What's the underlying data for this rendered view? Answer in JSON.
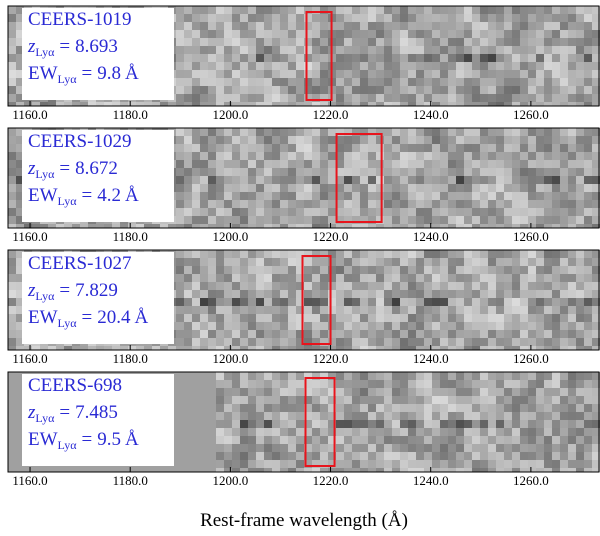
{
  "chart_data": [
    {
      "type": "spectrum2d",
      "name": "CEERS-1019",
      "z_symbol": "z",
      "ew_symbol": "EW",
      "subscript": "Lyα",
      "equals": "=",
      "z": 8.693,
      "ew": 9.8,
      "ew_unit": "Å",
      "xlim": [
        1155.6,
        1273.8
      ],
      "xticks": [
        {
          "value": 1160,
          "label": "1160.0"
        },
        {
          "value": 1180,
          "label": "1180.0"
        },
        {
          "value": 1200,
          "label": "1200.0"
        },
        {
          "value": 1220,
          "label": "1220.0"
        },
        {
          "value": 1240,
          "label": "1240.0"
        },
        {
          "value": 1260,
          "label": "1260.0"
        }
      ],
      "highlight": [
        1215.2,
        1220.2
      ],
      "highlight_color": "#e8141c"
    },
    {
      "type": "spectrum2d",
      "name": "CEERS-1029",
      "z_symbol": "z",
      "ew_symbol": "EW",
      "subscript": "Lyα",
      "equals": "=",
      "z": 8.672,
      "ew": 4.2,
      "ew_unit": "Å",
      "xlim": [
        1155.6,
        1273.8
      ],
      "xticks": [
        {
          "value": 1160,
          "label": "1160.0"
        },
        {
          "value": 1180,
          "label": "1180.0"
        },
        {
          "value": 1200,
          "label": "1200.0"
        },
        {
          "value": 1220,
          "label": "1220.0"
        },
        {
          "value": 1240,
          "label": "1240.0"
        },
        {
          "value": 1260,
          "label": "1260.0"
        }
      ],
      "highlight": [
        1221.2,
        1230.2
      ],
      "highlight_color": "#e8141c"
    },
    {
      "type": "spectrum2d",
      "name": "CEERS-1027",
      "z_symbol": "z",
      "ew_symbol": "EW",
      "subscript": "Lyα",
      "equals": "=",
      "z": 7.829,
      "ew": 20.4,
      "ew_unit": "Å",
      "xlim": [
        1155.6,
        1273.8
      ],
      "xticks": [
        {
          "value": 1160,
          "label": "1160.0"
        },
        {
          "value": 1180,
          "label": "1180.0"
        },
        {
          "value": 1200,
          "label": "1200.0"
        },
        {
          "value": 1220,
          "label": "1220.0"
        },
        {
          "value": 1240,
          "label": "1240.0"
        },
        {
          "value": 1260,
          "label": "1260.0"
        }
      ],
      "highlight": [
        1214.4,
        1220.0
      ],
      "highlight_color": "#e8141c"
    },
    {
      "type": "spectrum2d",
      "name": "CEERS-698",
      "z_symbol": "z",
      "ew_symbol": "EW",
      "subscript": "Lyα",
      "equals": "=",
      "z": 7.485,
      "ew": 9.5,
      "ew_unit": "Å",
      "xlim": [
        1155.6,
        1273.8
      ],
      "xticks": [
        {
          "value": 1160,
          "label": "1160.0"
        },
        {
          "value": 1180,
          "label": "1180.0"
        },
        {
          "value": 1200,
          "label": "1200.0"
        },
        {
          "value": 1220,
          "label": "1220.0"
        },
        {
          "value": 1240,
          "label": "1240.0"
        },
        {
          "value": 1260,
          "label": "1260.0"
        }
      ],
      "highlight": [
        1215.0,
        1220.8
      ],
      "highlight_color": "#e8141c",
      "xlabel": "Rest-frame wavelength (Å)"
    }
  ]
}
